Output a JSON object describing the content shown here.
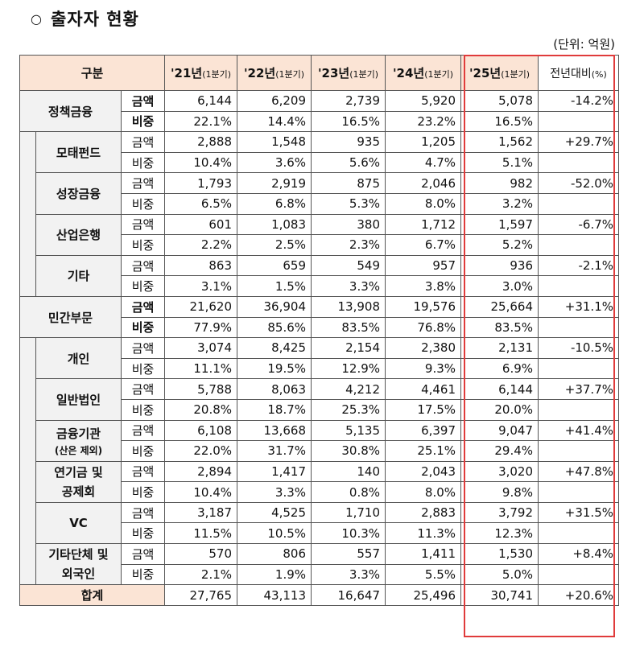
{
  "title": "출자자 현황",
  "title_bullet": "○",
  "unit": "(단위: 억원)",
  "header": {
    "category": "구분",
    "years": [
      {
        "year": "'21년",
        "suffix": "(1분기)"
      },
      {
        "year": "'22년",
        "suffix": "(1분기)"
      },
      {
        "year": "'23년",
        "suffix": "(1분기)"
      },
      {
        "year": "'24년",
        "suffix": "(1분기)"
      },
      {
        "year": "'25년",
        "suffix": "(1분기)"
      }
    ],
    "yoy": "전년대비",
    "yoy_unit": "(%)"
  },
  "labels": {
    "amount": "금액",
    "share": "비중"
  },
  "groups": [
    {
      "name": "정책금융",
      "amount": [
        "6,144",
        "6,209",
        "2,739",
        "5,920",
        "5,078"
      ],
      "share": [
        "22.1%",
        "14.4%",
        "16.5%",
        "23.2%",
        "16.5%"
      ],
      "yoy": "-14.2%",
      "subs": [
        {
          "name": "모태펀드",
          "amount": [
            "2,888",
            "1,548",
            "935",
            "1,205",
            "1,562"
          ],
          "share": [
            "10.4%",
            "3.6%",
            "5.6%",
            "4.7%",
            "5.1%"
          ],
          "yoy": "+29.7%"
        },
        {
          "name": "성장금융",
          "amount": [
            "1,793",
            "2,919",
            "875",
            "2,046",
            "982"
          ],
          "share": [
            "6.5%",
            "6.8%",
            "5.3%",
            "8.0%",
            "3.2%"
          ],
          "yoy": "-52.0%"
        },
        {
          "name": "산업은행",
          "amount": [
            "601",
            "1,083",
            "380",
            "1,712",
            "1,597"
          ],
          "share": [
            "2.2%",
            "2.5%",
            "2.3%",
            "6.7%",
            "5.2%"
          ],
          "yoy": "-6.7%"
        },
        {
          "name": "기타",
          "amount": [
            "863",
            "659",
            "549",
            "957",
            "936"
          ],
          "share": [
            "3.1%",
            "1.5%",
            "3.3%",
            "3.8%",
            "3.0%"
          ],
          "yoy": "-2.1%"
        }
      ]
    },
    {
      "name": "민간부문",
      "amount": [
        "21,620",
        "36,904",
        "13,908",
        "19,576",
        "25,664"
      ],
      "share": [
        "77.9%",
        "85.6%",
        "83.5%",
        "76.8%",
        "83.5%"
      ],
      "yoy": "+31.1%",
      "subs": [
        {
          "name": "개인",
          "amount": [
            "3,074",
            "8,425",
            "2,154",
            "2,380",
            "2,131"
          ],
          "share": [
            "11.1%",
            "19.5%",
            "12.9%",
            "9.3%",
            "6.9%"
          ],
          "yoy": "-10.5%"
        },
        {
          "name": "일반법인",
          "amount": [
            "5,788",
            "8,063",
            "4,212",
            "4,461",
            "6,144"
          ],
          "share": [
            "20.8%",
            "18.7%",
            "25.3%",
            "17.5%",
            "20.0%"
          ],
          "yoy": "+37.7%"
        },
        {
          "name": "금융기관",
          "note": "(산은 제외)",
          "amount": [
            "6,108",
            "13,668",
            "5,135",
            "6,397",
            "9,047"
          ],
          "share": [
            "22.0%",
            "31.7%",
            "30.8%",
            "25.1%",
            "29.4%"
          ],
          "yoy": "+41.4%"
        },
        {
          "name": "연기금 및\n공제회",
          "amount": [
            "2,894",
            "1,417",
            "140",
            "2,043",
            "3,020"
          ],
          "share": [
            "10.4%",
            "3.3%",
            "0.8%",
            "8.0%",
            "9.8%"
          ],
          "yoy": "+47.8%"
        },
        {
          "name": "VC",
          "amount": [
            "3,187",
            "4,525",
            "1,710",
            "2,883",
            "3,792"
          ],
          "share": [
            "11.5%",
            "10.5%",
            "10.3%",
            "11.3%",
            "12.3%"
          ],
          "yoy": "+31.5%"
        },
        {
          "name": "기타단체 및\n외국인",
          "amount": [
            "570",
            "806",
            "557",
            "1,411",
            "1,530"
          ],
          "share": [
            "2.1%",
            "1.9%",
            "3.3%",
            "5.5%",
            "5.0%"
          ],
          "yoy": "+8.4%"
        }
      ]
    }
  ],
  "total": {
    "label": "합계",
    "values": [
      "27,765",
      "43,113",
      "16,647",
      "25,496",
      "30,741"
    ],
    "yoy": "+20.6%"
  }
}
